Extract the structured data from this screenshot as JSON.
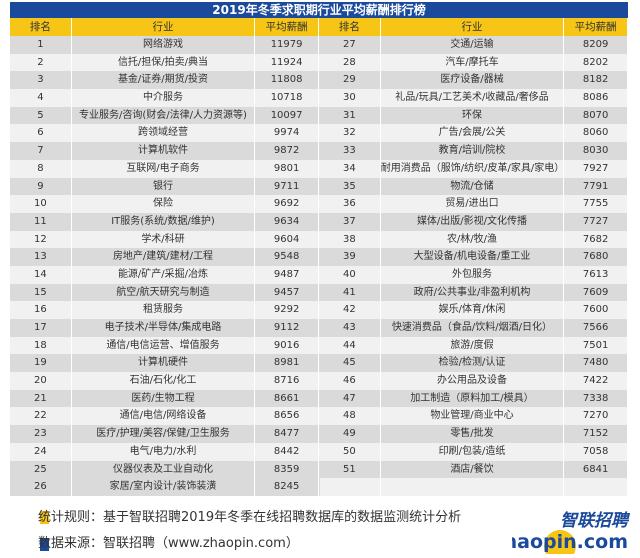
{
  "title": "2019年冬季求职期行业平均薪酬排行榜",
  "headers": {
    "rank": "排名",
    "industry": "行业",
    "salary": "平均薪酬"
  },
  "rows": [
    [
      [
        "1",
        "网络游戏",
        "11979"
      ],
      [
        "27",
        "交通/运输",
        "8209"
      ]
    ],
    [
      [
        "2",
        "信托/担保/拍卖/典当",
        "11924"
      ],
      [
        "28",
        "汽车/摩托车",
        "8202"
      ]
    ],
    [
      [
        "3",
        "基金/证券/期货/投资",
        "11808"
      ],
      [
        "29",
        "医疗设备/器械",
        "8182"
      ]
    ],
    [
      [
        "4",
        "中介服务",
        "10718"
      ],
      [
        "30",
        "礼品/玩具/工艺美术/收藏品/奢侈品",
        "8086"
      ]
    ],
    [
      [
        "5",
        "专业服务/咨询(财会/法律/人力资源等)",
        "10097"
      ],
      [
        "31",
        "环保",
        "8070"
      ]
    ],
    [
      [
        "6",
        "跨领域经营",
        "9974"
      ],
      [
        "32",
        "广告/会展/公关",
        "8060"
      ]
    ],
    [
      [
        "7",
        "计算机软件",
        "9872"
      ],
      [
        "33",
        "教育/培训/院校",
        "8030"
      ]
    ],
    [
      [
        "8",
        "互联网/电子商务",
        "9801"
      ],
      [
        "34",
        "耐用消费品（服饰/纺织/皮革/家具/家电）",
        "7927"
      ]
    ],
    [
      [
        "9",
        "银行",
        "9711"
      ],
      [
        "35",
        "物流/仓储",
        "7791"
      ]
    ],
    [
      [
        "10",
        "保险",
        "9692"
      ],
      [
        "36",
        "贸易/进出口",
        "7755"
      ]
    ],
    [
      [
        "11",
        "IT服务(系统/数据/维护)",
        "9634"
      ],
      [
        "37",
        "媒体/出版/影视/文化传播",
        "7727"
      ]
    ],
    [
      [
        "12",
        "学术/科研",
        "9604"
      ],
      [
        "38",
        "农/林/牧/渔",
        "7682"
      ]
    ],
    [
      [
        "13",
        "房地产/建筑/建材/工程",
        "9548"
      ],
      [
        "39",
        "大型设备/机电设备/重工业",
        "7680"
      ]
    ],
    [
      [
        "14",
        "能源/矿产/采掘/冶炼",
        "9487"
      ],
      [
        "40",
        "外包服务",
        "7613"
      ]
    ],
    [
      [
        "15",
        "航空/航天研究与制造",
        "9457"
      ],
      [
        "41",
        "政府/公共事业/非盈利机构",
        "7609"
      ]
    ],
    [
      [
        "16",
        "租赁服务",
        "9292"
      ],
      [
        "42",
        "娱乐/体育/休闲",
        "7600"
      ]
    ],
    [
      [
        "17",
        "电子技术/半导体/集成电路",
        "9112"
      ],
      [
        "43",
        "快速消费品（食品/饮料/烟酒/日化）",
        "7566"
      ]
    ],
    [
      [
        "18",
        "通信/电信运营、增值服务",
        "9016"
      ],
      [
        "44",
        "旅游/度假",
        "7501"
      ]
    ],
    [
      [
        "19",
        "计算机硬件",
        "8981"
      ],
      [
        "45",
        "检验/检测/认证",
        "7480"
      ]
    ],
    [
      [
        "20",
        "石油/石化/化工",
        "8716"
      ],
      [
        "46",
        "办公用品及设备",
        "7422"
      ]
    ],
    [
      [
        "21",
        "医药/生物工程",
        "8661"
      ],
      [
        "47",
        "加工制造（原料加工/模具）",
        "7338"
      ]
    ],
    [
      [
        "22",
        "通信/电信/网络设备",
        "8656"
      ],
      [
        "48",
        "物业管理/商业中心",
        "7270"
      ]
    ],
    [
      [
        "23",
        "医疗/护理/美容/保健/卫生服务",
        "8477"
      ],
      [
        "49",
        "零售/批发",
        "7152"
      ]
    ],
    [
      [
        "24",
        "电气/电力/水利",
        "8442"
      ],
      [
        "50",
        "印刷/包装/造纸",
        "7058"
      ]
    ],
    [
      [
        "25",
        "仪器仪表及工业自动化",
        "8359"
      ],
      [
        "51",
        "酒店/餐饮",
        "6841"
      ]
    ],
    [
      [
        "26",
        "家居/室内设计/装饰装潢",
        "8245"
      ],
      [
        "",
        "",
        ""
      ]
    ]
  ],
  "footer": {
    "rule": "统计规则：基于智联招聘2019年冬季在线招聘数据库的数据监测统计分析",
    "source": "数据来源：智联招聘（www.zhaopin.com）"
  },
  "logo": {
    "cn": "智联招聘",
    "en": "zhaopin.com"
  },
  "colors": {
    "title_bg": "#1b4a9c",
    "header_bg": "#f6c516",
    "row_odd": "#dadada",
    "row_even": "#f1f1f1",
    "bullet_yellow": "#f6c516",
    "bullet_blue": "#1b4a9c"
  }
}
